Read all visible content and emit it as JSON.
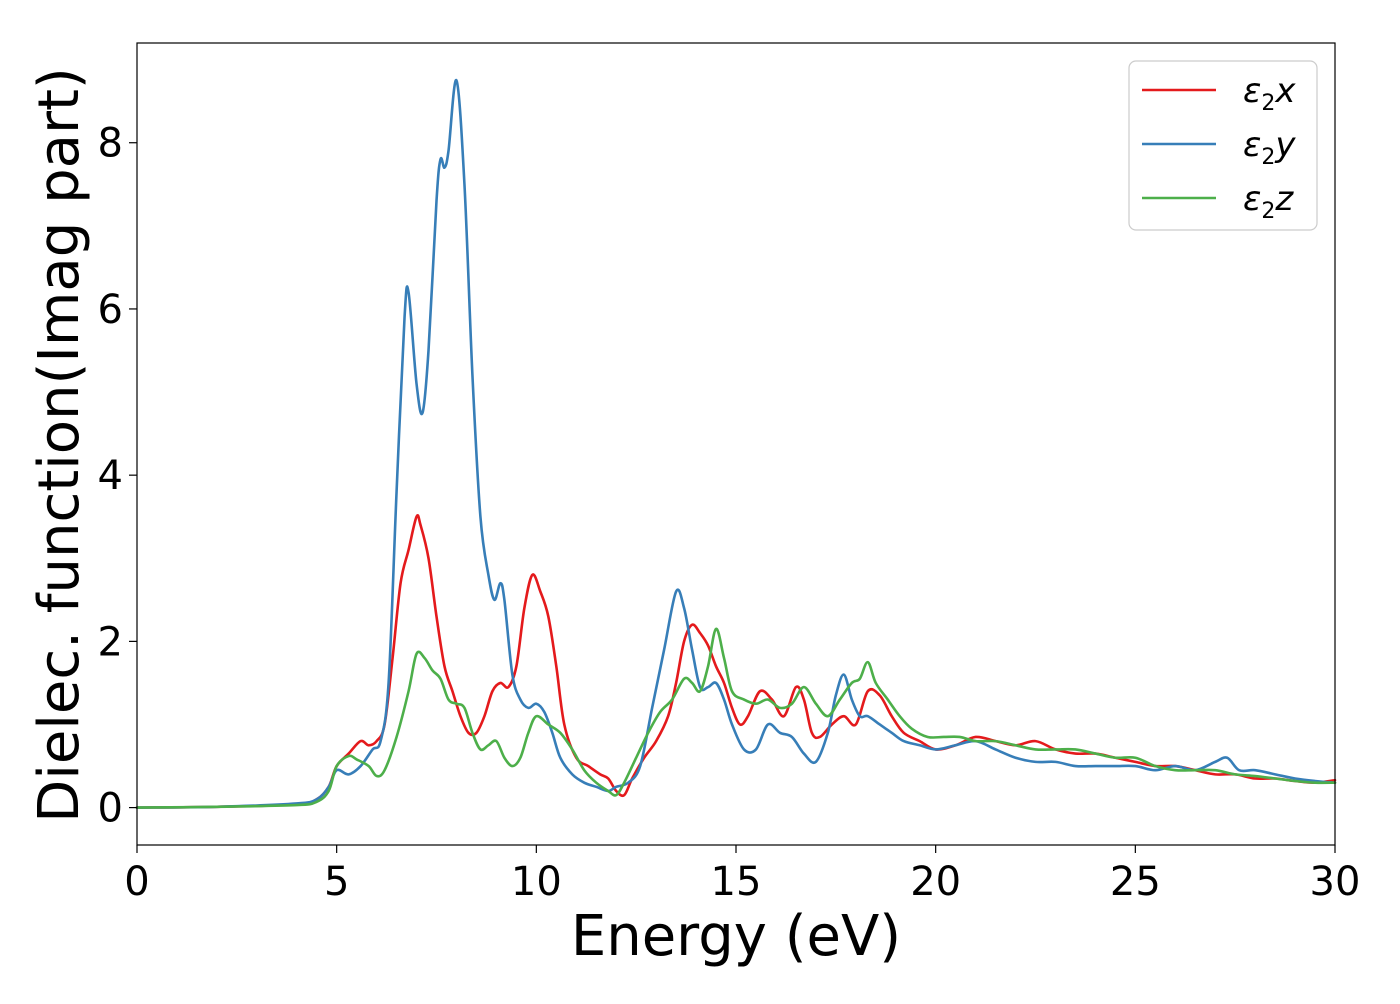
{
  "chart_data": {
    "type": "line",
    "title": "",
    "xlabel": "Energy (eV)",
    "ylabel": "Dielec. function(Imag part)",
    "xlim": [
      0,
      30
    ],
    "ylim": [
      -0.45,
      9.2
    ],
    "xticks": [
      0,
      5,
      10,
      15,
      20,
      25,
      30
    ],
    "yticks": [
      0,
      2,
      4,
      6,
      8
    ],
    "grid": false,
    "legend_position": "top-right",
    "series": [
      {
        "name": "ε2x",
        "legend": {
          "base": "ε",
          "sub": "2",
          "tail": "x"
        },
        "color": "#e41a1c",
        "x": [
          0,
          2,
          4,
          4.5,
          4.8,
          5.0,
          5.3,
          5.6,
          5.8,
          6.0,
          6.2,
          6.4,
          6.6,
          6.8,
          7.0,
          7.1,
          7.3,
          7.5,
          7.7,
          7.9,
          8.1,
          8.3,
          8.5,
          8.7,
          8.9,
          9.1,
          9.3,
          9.5,
          9.7,
          9.9,
          10.1,
          10.3,
          10.5,
          10.7,
          11.0,
          11.3,
          11.6,
          11.8,
          12.0,
          12.2,
          12.4,
          12.7,
          13.0,
          13.3,
          13.5,
          13.7,
          13.9,
          14.1,
          14.3,
          14.5,
          14.7,
          14.9,
          15.1,
          15.3,
          15.6,
          15.9,
          16.2,
          16.5,
          16.7,
          16.9,
          17.1,
          17.4,
          17.7,
          18.0,
          18.3,
          18.6,
          18.9,
          19.2,
          19.6,
          20.0,
          20.5,
          21.0,
          21.5,
          22.0,
          22.5,
          23.0,
          23.5,
          24.0,
          24.5,
          25.0,
          25.5,
          26.0,
          26.5,
          27.0,
          27.5,
          28.0,
          28.5,
          29.0,
          29.5,
          30.0
        ],
        "y": [
          0,
          0.01,
          0.04,
          0.1,
          0.25,
          0.5,
          0.65,
          0.8,
          0.75,
          0.8,
          1.0,
          1.8,
          2.7,
          3.1,
          3.5,
          3.4,
          3.0,
          2.3,
          1.7,
          1.4,
          1.1,
          0.9,
          0.9,
          1.1,
          1.4,
          1.5,
          1.45,
          1.7,
          2.4,
          2.8,
          2.6,
          2.3,
          1.7,
          1.0,
          0.6,
          0.5,
          0.4,
          0.35,
          0.2,
          0.15,
          0.35,
          0.6,
          0.8,
          1.1,
          1.5,
          2.0,
          2.2,
          2.1,
          1.95,
          1.7,
          1.5,
          1.2,
          1.0,
          1.1,
          1.4,
          1.3,
          1.1,
          1.45,
          1.3,
          0.9,
          0.85,
          1.0,
          1.1,
          1.0,
          1.4,
          1.35,
          1.1,
          0.9,
          0.8,
          0.7,
          0.75,
          0.85,
          0.8,
          0.75,
          0.8,
          0.7,
          0.65,
          0.65,
          0.6,
          0.55,
          0.5,
          0.5,
          0.45,
          0.4,
          0.4,
          0.35,
          0.35,
          0.32,
          0.3,
          0.33
        ]
      },
      {
        "name": "ε2y",
        "legend": {
          "base": "ε",
          "sub": "2",
          "tail": "y"
        },
        "color": "#377eb8",
        "x": [
          0,
          2,
          4,
          4.5,
          4.8,
          5.0,
          5.3,
          5.6,
          5.9,
          6.1,
          6.3,
          6.5,
          6.7,
          6.8,
          7.0,
          7.15,
          7.3,
          7.5,
          7.6,
          7.7,
          7.8,
          8.0,
          8.2,
          8.4,
          8.6,
          8.8,
          8.95,
          9.1,
          9.2,
          9.4,
          9.6,
          9.8,
          10.0,
          10.2,
          10.4,
          10.6,
          10.9,
          11.2,
          11.5,
          11.8,
          12.0,
          12.3,
          12.6,
          12.9,
          13.2,
          13.5,
          13.7,
          13.9,
          14.1,
          14.3,
          14.5,
          14.7,
          14.9,
          15.2,
          15.5,
          15.8,
          16.1,
          16.4,
          16.7,
          17.0,
          17.3,
          17.5,
          17.7,
          17.9,
          18.1,
          18.3,
          18.6,
          18.9,
          19.2,
          19.6,
          20.0,
          20.5,
          21.0,
          21.5,
          22.0,
          22.5,
          23.0,
          23.5,
          24.0,
          24.5,
          25.0,
          25.5,
          26.0,
          26.5,
          27.0,
          27.3,
          27.6,
          28.0,
          28.5,
          29.0,
          29.5,
          30.0
        ],
        "y": [
          0,
          0.01,
          0.05,
          0.1,
          0.25,
          0.45,
          0.4,
          0.5,
          0.7,
          0.8,
          1.5,
          3.8,
          5.9,
          6.2,
          5.1,
          4.75,
          5.5,
          7.3,
          7.8,
          7.7,
          7.9,
          8.75,
          7.5,
          5.2,
          3.5,
          2.8,
          2.5,
          2.7,
          2.5,
          1.6,
          1.3,
          1.2,
          1.25,
          1.15,
          0.9,
          0.6,
          0.4,
          0.3,
          0.25,
          0.2,
          0.25,
          0.3,
          0.5,
          1.2,
          1.9,
          2.6,
          2.4,
          1.9,
          1.45,
          1.45,
          1.5,
          1.3,
          1.0,
          0.7,
          0.7,
          1.0,
          0.9,
          0.85,
          0.65,
          0.55,
          0.9,
          1.35,
          1.6,
          1.3,
          1.1,
          1.1,
          1.0,
          0.9,
          0.8,
          0.75,
          0.7,
          0.75,
          0.8,
          0.7,
          0.6,
          0.55,
          0.55,
          0.5,
          0.5,
          0.5,
          0.5,
          0.45,
          0.5,
          0.45,
          0.55,
          0.6,
          0.45,
          0.45,
          0.4,
          0.35,
          0.32,
          0.3
        ]
      },
      {
        "name": "ε2z",
        "legend": {
          "base": "ε",
          "sub": "2",
          "tail": "z"
        },
        "color": "#4daf4a",
        "x": [
          0,
          2,
          4,
          4.5,
          4.8,
          5.0,
          5.3,
          5.5,
          5.8,
          6.0,
          6.2,
          6.5,
          6.8,
          7.0,
          7.2,
          7.4,
          7.6,
          7.8,
          8.0,
          8.2,
          8.4,
          8.6,
          8.8,
          9.0,
          9.2,
          9.4,
          9.6,
          9.8,
          10.0,
          10.3,
          10.6,
          10.9,
          11.2,
          11.5,
          11.8,
          12.0,
          12.2,
          12.5,
          12.8,
          13.1,
          13.4,
          13.7,
          13.9,
          14.1,
          14.3,
          14.5,
          14.7,
          14.9,
          15.2,
          15.5,
          15.8,
          16.1,
          16.4,
          16.7,
          17.0,
          17.3,
          17.6,
          17.9,
          18.1,
          18.3,
          18.5,
          18.8,
          19.1,
          19.4,
          19.8,
          20.2,
          20.6,
          21.0,
          21.5,
          22.0,
          22.5,
          23.0,
          23.5,
          24.0,
          24.5,
          25.0,
          25.5,
          26.0,
          26.5,
          27.0,
          27.5,
          28.0,
          28.5,
          29.0,
          29.5,
          30.0
        ],
        "y": [
          0,
          0.01,
          0.03,
          0.07,
          0.2,
          0.5,
          0.62,
          0.58,
          0.5,
          0.38,
          0.45,
          0.85,
          1.4,
          1.85,
          1.8,
          1.65,
          1.55,
          1.3,
          1.25,
          1.2,
          0.9,
          0.7,
          0.75,
          0.8,
          0.6,
          0.5,
          0.6,
          0.9,
          1.1,
          1.0,
          0.9,
          0.7,
          0.45,
          0.3,
          0.2,
          0.15,
          0.3,
          0.6,
          0.9,
          1.15,
          1.3,
          1.55,
          1.5,
          1.4,
          1.7,
          2.15,
          1.8,
          1.4,
          1.3,
          1.25,
          1.3,
          1.2,
          1.25,
          1.45,
          1.25,
          1.1,
          1.3,
          1.5,
          1.55,
          1.75,
          1.5,
          1.3,
          1.1,
          0.95,
          0.85,
          0.85,
          0.85,
          0.8,
          0.8,
          0.75,
          0.7,
          0.7,
          0.7,
          0.65,
          0.6,
          0.6,
          0.5,
          0.45,
          0.45,
          0.45,
          0.4,
          0.38,
          0.35,
          0.32,
          0.3,
          0.3
        ]
      }
    ]
  }
}
